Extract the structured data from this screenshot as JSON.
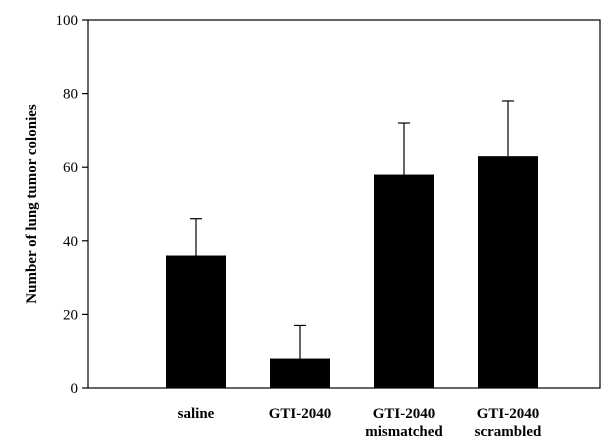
{
  "chart_data": {
    "type": "bar",
    "ylabel": "Number of lung tumor colonies",
    "xlabel": "",
    "ylim": [
      0,
      100
    ],
    "yticks": [
      0,
      20,
      40,
      60,
      80,
      100
    ],
    "categories": [
      [
        "saline"
      ],
      [
        "GTI-2040"
      ],
      [
        "GTI-2040",
        "mismatched"
      ],
      [
        "GTI-2040",
        "scrambled"
      ]
    ],
    "values": [
      36,
      8,
      58,
      63
    ],
    "error_plus": [
      10,
      9,
      14,
      15
    ],
    "bar_color": "#000000",
    "grid": false,
    "legend": "none"
  }
}
